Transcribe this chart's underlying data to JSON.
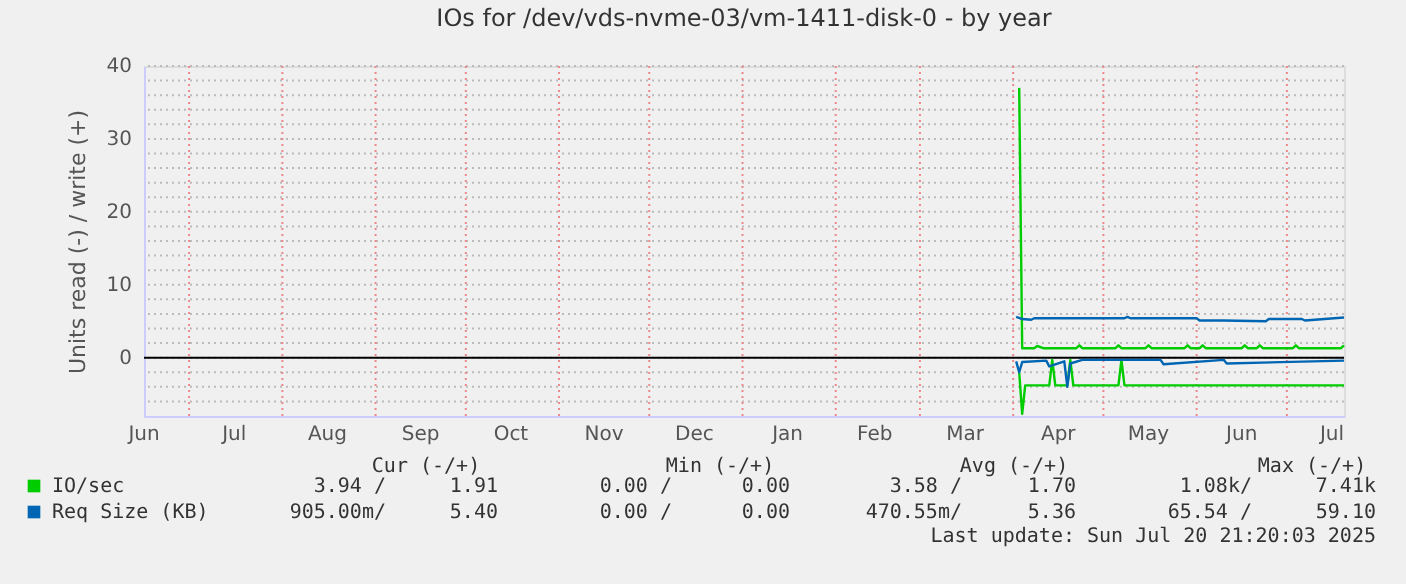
{
  "chart_data": {
    "type": "line",
    "title": "IOs for /dev/vds-nvme-03/vm-1411-disk-0 - by year",
    "ylabel": "Units read (-) / write (+)",
    "xlim": [
      "2024-06-16",
      "2025-07-20"
    ],
    "ylim": [
      -8,
      40
    ],
    "yticks": [
      {
        "value": -6,
        "label": null
      },
      {
        "value": -4,
        "label": null
      },
      {
        "value": -2,
        "label": null
      },
      0,
      {
        "value": 2,
        "label": null
      },
      {
        "value": 4,
        "label": null
      },
      {
        "value": 6,
        "label": null
      },
      {
        "value": 8,
        "label": null
      },
      10,
      {
        "value": 12,
        "label": null
      },
      {
        "value": 14,
        "label": null
      },
      {
        "value": 16,
        "label": null
      },
      {
        "value": 18,
        "label": null
      },
      20,
      {
        "value": 22,
        "label": null
      },
      {
        "value": 24,
        "label": null
      },
      {
        "value": 26,
        "label": null
      },
      {
        "value": 28,
        "label": null
      },
      30,
      {
        "value": 32,
        "label": null
      },
      {
        "value": 34,
        "label": null
      },
      {
        "value": 36,
        "label": null
      },
      {
        "value": 38,
        "label": null
      },
      40
    ],
    "xticks": [
      {
        "value": "2024-06-16",
        "label": "Jun"
      },
      {
        "value": "2024-07-01",
        "label": null
      },
      {
        "value": "2024-07-16",
        "label": "Jul"
      },
      {
        "value": "2024-08-01",
        "label": null
      },
      {
        "value": "2024-08-16",
        "label": "Aug"
      },
      {
        "value": "2024-09-01",
        "label": null
      },
      {
        "value": "2024-09-16",
        "label": "Sep"
      },
      {
        "value": "2024-10-01",
        "label": null
      },
      {
        "value": "2024-10-16",
        "label": "Oct"
      },
      {
        "value": "2024-11-01",
        "label": null
      },
      {
        "value": "2024-11-16",
        "label": "Nov"
      },
      {
        "value": "2024-12-01",
        "label": null
      },
      {
        "value": "2024-12-16",
        "label": "Dec"
      },
      {
        "value": "2025-01-01",
        "label": null
      },
      {
        "value": "2025-01-16",
        "label": "Jan"
      },
      {
        "value": "2025-02-01",
        "label": null
      },
      {
        "value": "2025-02-14",
        "label": "Feb"
      },
      {
        "value": "2025-03-01",
        "label": null
      },
      {
        "value": "2025-03-16",
        "label": "Mar"
      },
      {
        "value": "2025-04-01",
        "label": null
      },
      {
        "value": "2025-04-16",
        "label": "Apr"
      },
      {
        "value": "2025-05-01",
        "label": null
      },
      {
        "value": "2025-05-16",
        "label": "May"
      },
      {
        "value": "2025-06-01",
        "label": null
      },
      {
        "value": "2025-06-16",
        "label": "Jun"
      },
      {
        "value": "2025-07-01",
        "label": null
      },
      {
        "value": "2025-07-16",
        "label": "Jul"
      }
    ],
    "grid": true,
    "legend": "bottom",
    "line_style": "solid",
    "marker": "none",
    "ref_lines": [
      {
        "axis": "y",
        "value": 0,
        "label": null,
        "color": "#000000"
      }
    ],
    "series": [
      {
        "name": "IO/sec",
        "color": "#00cc00",
        "x": [
          "2025-04-03",
          "2025-04-04",
          "2025-04-08",
          "2025-04-09",
          "2025-04-11",
          "2025-04-22",
          "2025-04-23",
          "2025-04-24",
          "2025-05-05",
          "2025-05-06",
          "2025-05-07",
          "2025-05-15",
          "2025-05-16",
          "2025-05-17",
          "2025-05-28",
          "2025-05-29",
          "2025-05-30",
          "2025-06-02",
          "2025-06-03",
          "2025-06-04",
          "2025-06-16",
          "2025-06-17",
          "2025-06-18",
          "2025-06-21",
          "2025-06-22",
          "2025-06-23",
          "2025-07-03",
          "2025-07-04",
          "2025-07-05",
          "2025-07-19",
          "2025-07-20"
        ],
        "values": [
          37,
          1.3,
          1.3,
          1.6,
          1.3,
          1.3,
          1.7,
          1.3,
          1.3,
          1.7,
          1.3,
          1.3,
          1.7,
          1.3,
          1.3,
          1.7,
          1.3,
          1.3,
          1.7,
          1.3,
          1.3,
          1.7,
          1.3,
          1.3,
          1.7,
          1.3,
          1.3,
          1.7,
          1.3,
          1.3,
          1.7
        ]
      },
      {
        "color": "#00cc00",
        "x": [
          "2025-04-03",
          "2025-04-04",
          "2025-04-05",
          "2025-04-13",
          "2025-04-14",
          "2025-04-15",
          "2025-04-19",
          "2025-04-20",
          "2025-04-21",
          "2025-05-06",
          "2025-05-07",
          "2025-05-08",
          "2025-07-20"
        ],
        "values": [
          -2,
          -7.7,
          -3.8,
          -3.8,
          -0.3,
          -3.8,
          -3.8,
          -0.3,
          -3.8,
          -3.8,
          -0.3,
          -3.8,
          -3.8
        ]
      },
      {
        "name": "Req Size (KB)",
        "color": "#0066b3",
        "x": [
          "2025-04-02",
          "2025-04-04",
          "2025-04-07",
          "2025-04-08",
          "2025-05-08",
          "2025-05-09",
          "2025-05-10",
          "2025-06-01",
          "2025-06-02",
          "2025-06-10",
          "2025-06-24",
          "2025-06-25",
          "2025-07-06",
          "2025-07-07",
          "2025-07-20"
        ],
        "values": [
          5.6,
          5.3,
          5.2,
          5.4,
          5.4,
          5.6,
          5.4,
          5.4,
          5.1,
          5.1,
          5.0,
          5.3,
          5.3,
          5.1,
          5.5
        ]
      },
      {
        "color": "#0066b3",
        "x": [
          "2025-04-02",
          "2025-04-03",
          "2025-04-04",
          "2025-04-12",
          "2025-04-13",
          "2025-04-18",
          "2025-04-19",
          "2025-04-20",
          "2025-04-24",
          "2025-05-20",
          "2025-05-21",
          "2025-06-10",
          "2025-06-11",
          "2025-07-20"
        ],
        "values": [
          -0.5,
          -2,
          -0.6,
          -0.4,
          -1.2,
          -0.5,
          -4,
          -0.8,
          -0.3,
          -0.3,
          -0.9,
          -0.3,
          -0.8,
          -0.4
        ]
      }
    ],
    "annotations": [
      "Cur (-/+)",
      "Min (-/+)",
      "Avg (-/+)",
      "Max (-/+)",
      "3.94 /",
      "1.91",
      "0.00 /",
      "0.00",
      "3.58 /",
      "1.70",
      "1.08k/",
      "7.41k",
      "905.00m/",
      "5.40",
      "0.00 /",
      "0.00",
      "470.55m/",
      "5.36",
      "65.54 /",
      "59.10",
      "Last update: Sun Jul 20 21:20:03 2025"
    ]
  }
}
